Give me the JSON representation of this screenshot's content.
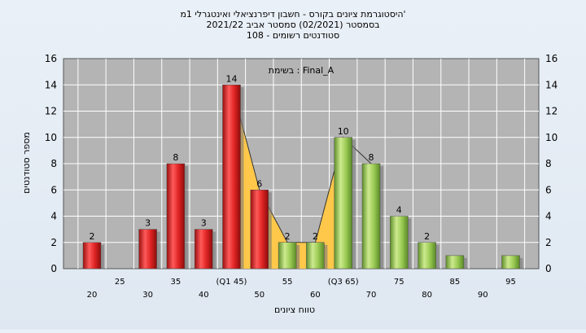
{
  "chart_data": {
    "type": "bar",
    "title_lines": [
      "היסטוגרמת ציונים בקורס - חשבון דיפרנציאלי ואינטגרלי 1מ'",
      "בסמסטר (02/2021) סמסטר אביב 2021/22",
      "סטודנטים רשומים - 108"
    ],
    "annotation": "בשימת : Final_A",
    "xlabel": "טווח ציונים",
    "ylabel": "מספר סטודנטים",
    "ylim": [
      0,
      16
    ],
    "yticks": [
      0,
      2,
      4,
      6,
      8,
      10,
      12,
      14,
      16
    ],
    "grid": true,
    "categories": [
      "20",
      "25",
      "30",
      "35",
      "40",
      "(Q1 45)",
      "50",
      "55",
      "60",
      "(Q3 65)",
      "70",
      "75",
      "80",
      "85",
      "90",
      "95"
    ],
    "values": [
      2,
      0,
      3,
      8,
      3,
      14,
      6,
      2,
      2,
      10,
      8,
      4,
      2,
      1,
      0,
      1
    ],
    "value_labels": [
      "2",
      "",
      "3",
      "8",
      "3",
      "14",
      "6",
      "2",
      "2",
      "10",
      "8",
      "4",
      "2",
      "",
      "",
      ""
    ],
    "colors": {
      "red": "#e02424",
      "green": "#9ccc55",
      "area": "#ffc84a",
      "plot_bg": "#b4b4b4",
      "page_bg": "#e2eaf3"
    },
    "bar_colors": [
      "red",
      "red",
      "red",
      "red",
      "red",
      "red",
      "red",
      "green",
      "green",
      "green",
      "green",
      "green",
      "green",
      "green",
      "green",
      "green"
    ]
  }
}
